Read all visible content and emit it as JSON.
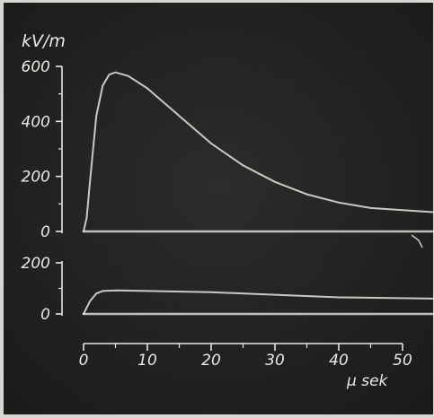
{
  "chart_data": [
    {
      "type": "line",
      "ylabel": "kV/m",
      "ylim": [
        0,
        600
      ],
      "yticks": [
        0,
        200,
        400,
        600
      ],
      "xlim": [
        0,
        50
      ],
      "series": [
        {
          "x": [
            0,
            0.5,
            1,
            2,
            3,
            4,
            5,
            7,
            10,
            15,
            20,
            25,
            30,
            35,
            40,
            45,
            50
          ],
          "values": [
            0,
            50,
            180,
            420,
            530,
            570,
            578,
            565,
            520,
            420,
            320,
            240,
            180,
            135,
            105,
            85,
            70
          ]
        },
        {
          "x": [
            0,
            50
          ],
          "values": [
            0,
            0
          ]
        }
      ]
    },
    {
      "type": "line",
      "ylim": [
        0,
        200
      ],
      "yticks": [
        0,
        200
      ],
      "xlim": [
        0,
        50
      ],
      "xticks": [
        0,
        10,
        20,
        30,
        40,
        50
      ],
      "xlabel": "μ sek",
      "series": [
        {
          "x": [
            0,
            1,
            2,
            3,
            5,
            10,
            20,
            30,
            40,
            50
          ],
          "values": [
            0,
            50,
            80,
            90,
            92,
            90,
            85,
            75,
            65,
            60
          ]
        },
        {
          "x": [
            0,
            50
          ],
          "values": [
            0,
            0
          ]
        }
      ]
    }
  ],
  "colors": {
    "background": "#232322",
    "trace": "#e6e6e2",
    "border": "#d8d6d2"
  }
}
